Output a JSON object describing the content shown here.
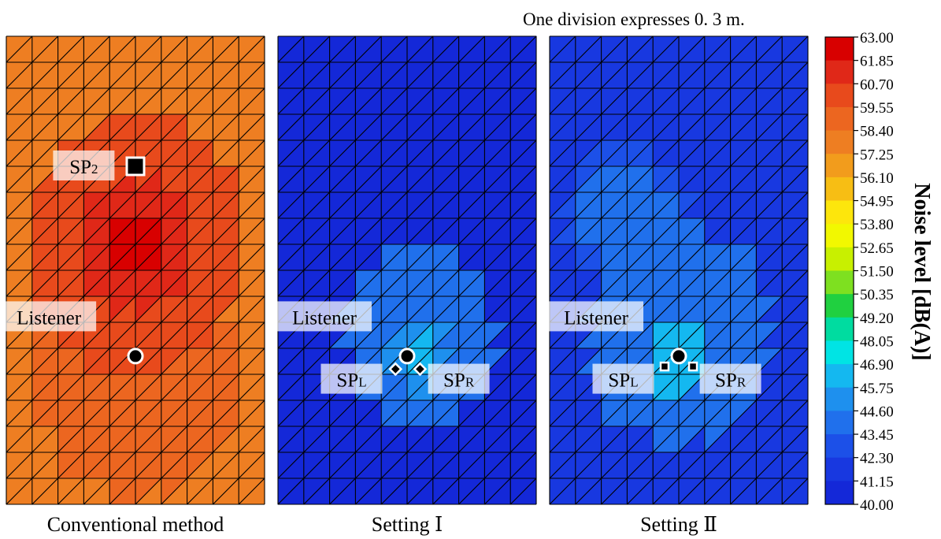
{
  "note": "One division expresses 0. 3 m.",
  "colorbar": {
    "title": "Noise level [dB(A)]",
    "ticks": [
      "63.00",
      "61.85",
      "60.70",
      "59.55",
      "58.40",
      "57.25",
      "56.10",
      "54.95",
      "53.80",
      "52.65",
      "51.50",
      "50.35",
      "49.20",
      "48.05",
      "46.90",
      "45.75",
      "44.60",
      "43.45",
      "42.30",
      "41.15",
      "40.00"
    ],
    "colors": [
      "#d80000",
      "#e02818",
      "#e84a1c",
      "#ec6620",
      "#ee7e22",
      "#f29c1c",
      "#f7be14",
      "#fde60c",
      "#f2f800",
      "#c8f000",
      "#7ee020",
      "#20d040",
      "#00dca0",
      "#00e4e4",
      "#14b8f0",
      "#1e90ee",
      "#2070ec",
      "#1c50e8",
      "#1838e0",
      "#1428d8"
    ]
  },
  "chart_data": {
    "type": "heatmap",
    "unit": "dB(A)",
    "range": [
      40.0,
      63.0
    ],
    "grid": "10 x 18 divisions, triangulated; one division = 0.3 m",
    "panels": [
      {
        "caption": "Conventional method",
        "background_level": 57.3,
        "hotspots": [
          {
            "c": 5,
            "r": 8,
            "level": 62.5,
            "radius": 2.2
          },
          {
            "c": 5,
            "r": 8,
            "level": 60.5,
            "radius": 4.2
          },
          {
            "c": 5,
            "r": 13,
            "level": 59.0,
            "radius": 4.0
          }
        ],
        "markers": [
          {
            "type": "square",
            "c": 5,
            "r": 5,
            "name": "SP2",
            "sub": "2"
          },
          {
            "type": "circle",
            "c": 5,
            "r": 12.3,
            "name": "Listener"
          }
        ],
        "labels": [
          {
            "text": "SP",
            "sub": "2",
            "c": 3.0,
            "r": 5.0
          },
          {
            "text": "Listener",
            "c": 1.65,
            "r": 10.8
          }
        ]
      },
      {
        "caption": "Setting Ⅰ",
        "background_level": 41.0,
        "hotspots": [
          {
            "c": 5.5,
            "r": 12.3,
            "level": 46.5,
            "radius": 1.2
          },
          {
            "c": 5.5,
            "r": 11.5,
            "level": 44.3,
            "radius": 3.0
          }
        ],
        "markers": [
          {
            "type": "circle",
            "c": 5,
            "r": 12.3,
            "name": "Listener"
          },
          {
            "type": "diamond",
            "c": 4.55,
            "r": 12.8,
            "name": "SPL"
          },
          {
            "type": "diamond",
            "c": 5.5,
            "r": 12.8,
            "name": "SPR"
          }
        ],
        "labels": [
          {
            "text": "Listener",
            "c": 1.8,
            "r": 10.8
          },
          {
            "text": "SP",
            "sub": "L",
            "c": 2.85,
            "r": 13.2
          },
          {
            "text": "SP",
            "sub": "R",
            "c": 7.0,
            "r": 13.2
          }
        ]
      },
      {
        "caption": "Setting Ⅱ",
        "background_level": 42.0,
        "hotspots": [
          {
            "c": 5,
            "r": 12.3,
            "level": 47.2,
            "radius": 1.3
          },
          {
            "c": 5,
            "r": 11.5,
            "level": 44.6,
            "radius": 3.6
          },
          {
            "c": 3,
            "r": 7,
            "level": 43.8,
            "radius": 2.5
          }
        ],
        "markers": [
          {
            "type": "circle",
            "c": 5,
            "r": 12.3,
            "name": "Listener"
          },
          {
            "type": "square-small",
            "c": 4.45,
            "r": 12.7,
            "name": "SPL"
          },
          {
            "type": "square-small",
            "c": 5.55,
            "r": 12.7,
            "name": "SPR"
          }
        ],
        "labels": [
          {
            "text": "Listener",
            "c": 1.8,
            "r": 10.8
          },
          {
            "text": "SP",
            "sub": "L",
            "c": 2.85,
            "r": 13.2
          },
          {
            "text": "SP",
            "sub": "R",
            "c": 7.0,
            "r": 13.2
          }
        ]
      }
    ]
  }
}
